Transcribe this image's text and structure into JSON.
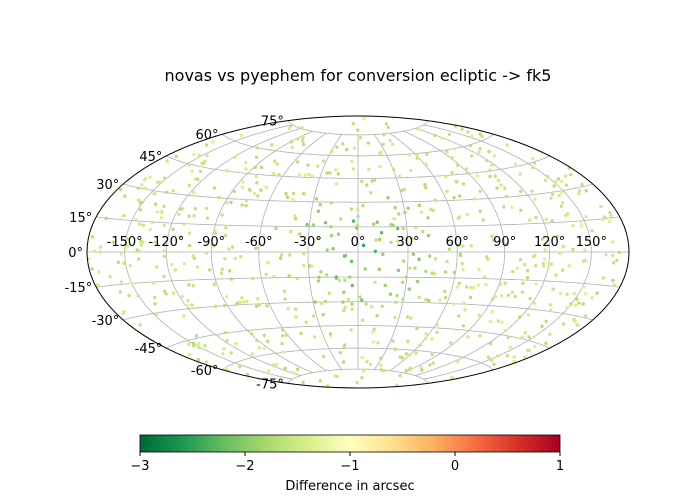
{
  "chart_data": {
    "type": "scatter",
    "projection": "hammer",
    "title": "novas vs pyephem for conversion ecliptic -> fk5",
    "lon_ticks": [
      "-150°",
      "-120°",
      "-90°",
      "-60°",
      "-30°",
      "0°",
      "30°",
      "60°",
      "90°",
      "120°",
      "150°"
    ],
    "lat_ticks": [
      "-75°",
      "-60°",
      "-45°",
      "-30°",
      "-15°",
      "0°",
      "15°",
      "30°",
      "45°",
      "60°",
      "75°"
    ],
    "grid": true,
    "colorbar": {
      "label": "Difference in arcsec",
      "range": [
        -3,
        1
      ],
      "ticks": [
        "−3",
        "−2",
        "−1",
        "0",
        "1"
      ],
      "colormap": "RdYlGn_r"
    },
    "points_note_hidden": "",
    "points": []
  }
}
